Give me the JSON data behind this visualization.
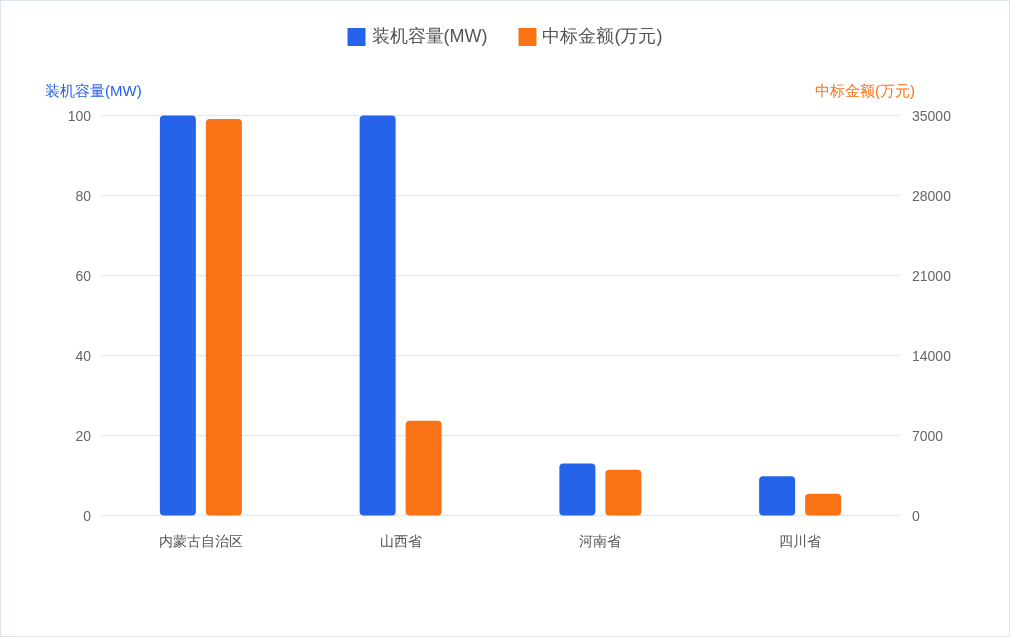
{
  "chart_data": {
    "type": "bar",
    "categories": [
      "内蒙古自治区",
      "山西省",
      "河南省",
      "四川省"
    ],
    "series": [
      {
        "name": "装机容量(MW)",
        "color": "#2563eb",
        "values": [
          100,
          100,
          13,
          9.8
        ]
      },
      {
        "name": "中标金额(万元)",
        "color": "#f97316",
        "axis": "y2",
        "values": [
          34700,
          8300,
          4000,
          1900
        ]
      }
    ],
    "ylabel": "装机容量(MW)",
    "y2label": "中标金额(万元)",
    "ylim": [
      0,
      100
    ],
    "yticks": [
      0,
      20,
      40,
      60,
      80,
      100
    ],
    "y2lim": [
      0,
      35000
    ],
    "y2ticks": [
      0,
      7000,
      14000,
      21000,
      28000,
      35000
    ],
    "grid": "y",
    "legend": "top"
  }
}
